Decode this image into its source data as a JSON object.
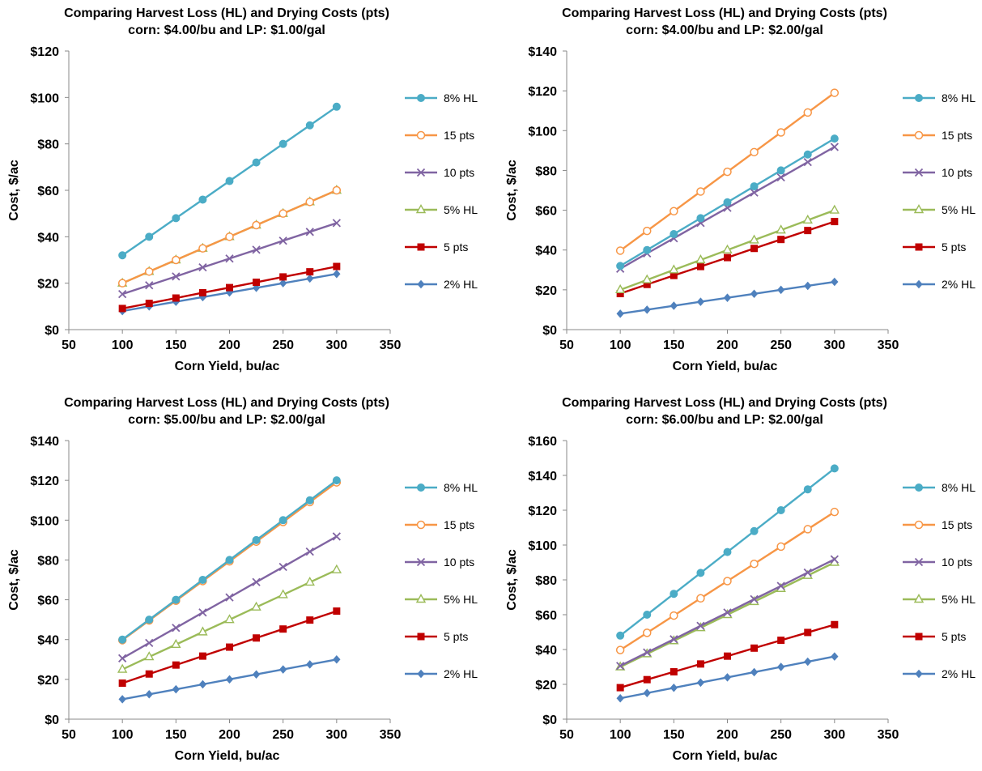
{
  "chart_data": [
    {
      "type": "line",
      "title": "Comparing Harvest Loss (HL) and Drying Costs (pts)",
      "subtitle": "corn: $4.00/bu and LP: $1.00/gal",
      "xlabel": "Corn Yield, bu/ac",
      "ylabel": "Cost, $/ac",
      "xlim": [
        50,
        350
      ],
      "ylim": [
        0,
        120
      ],
      "x_ticks": [
        50,
        100,
        150,
        200,
        250,
        300,
        350
      ],
      "y_ticks": [
        "$0",
        "$20",
        "$40",
        "$60",
        "$80",
        "$100",
        "$120"
      ],
      "legend_position": "right",
      "x": [
        100,
        125,
        150,
        175,
        200,
        225,
        250,
        275,
        300
      ],
      "series": [
        {
          "name": "8% HL",
          "color": "#4BACC6",
          "marker": "circle",
          "values": [
            32,
            40,
            48,
            56,
            64,
            72,
            80,
            88,
            96
          ]
        },
        {
          "name": "15 pts",
          "color": "#F79646",
          "marker": "circle-open",
          "values": [
            20,
            25,
            30,
            35,
            40,
            45,
            50,
            55,
            60
          ]
        },
        {
          "name": "10 pts",
          "color": "#8064A2",
          "marker": "x",
          "values": [
            15.3,
            19.1,
            22.9,
            26.8,
            30.6,
            34.4,
            38.3,
            42.1,
            45.9
          ]
        },
        {
          "name": "5% HL",
          "color": "#9BBB59",
          "marker": "triangle-open",
          "values": [
            20,
            25,
            30,
            35,
            40,
            45,
            50,
            55,
            60
          ]
        },
        {
          "name": "5 pts",
          "color": "#C00000",
          "marker": "square",
          "values": [
            9.1,
            11.3,
            13.6,
            15.9,
            18.1,
            20.4,
            22.7,
            24.9,
            27.2
          ]
        },
        {
          "name": "2% HL",
          "color": "#4F81BD",
          "marker": "diamond",
          "values": [
            8,
            10,
            12,
            14,
            16,
            18,
            20,
            22,
            24
          ]
        }
      ]
    },
    {
      "type": "line",
      "title": "Comparing Harvest Loss (HL) and Drying Costs (pts)",
      "subtitle": "corn: $4.00/bu and LP: $2.00/gal",
      "xlabel": "Corn Yield, bu/ac",
      "ylabel": "Cost, $/ac",
      "xlim": [
        50,
        350
      ],
      "ylim": [
        0,
        140
      ],
      "x_ticks": [
        50,
        100,
        150,
        200,
        250,
        300,
        350
      ],
      "y_ticks": [
        "$0",
        "$20",
        "$40",
        "$60",
        "$80",
        "$100",
        "$120",
        "$140"
      ],
      "legend_position": "right",
      "x": [
        100,
        125,
        150,
        175,
        200,
        225,
        250,
        275,
        300
      ],
      "series": [
        {
          "name": "8% HL",
          "color": "#4BACC6",
          "marker": "circle",
          "values": [
            32,
            40,
            48,
            56,
            64,
            72,
            80,
            88,
            96
          ]
        },
        {
          "name": "15 pts",
          "color": "#F79646",
          "marker": "circle-open",
          "values": [
            39.7,
            49.6,
            59.5,
            69.4,
            79.3,
            89.2,
            99.1,
            109.1,
            119
          ]
        },
        {
          "name": "10 pts",
          "color": "#8064A2",
          "marker": "x",
          "values": [
            30.6,
            38.3,
            45.9,
            53.6,
            61.2,
            68.9,
            76.5,
            84.2,
            91.8
          ]
        },
        {
          "name": "5% HL",
          "color": "#9BBB59",
          "marker": "triangle-open",
          "values": [
            20,
            25,
            30,
            35,
            40,
            45,
            50,
            55,
            60
          ]
        },
        {
          "name": "5 pts",
          "color": "#C00000",
          "marker": "square",
          "values": [
            18.1,
            22.7,
            27.2,
            31.7,
            36.2,
            40.8,
            45.3,
            49.8,
            54.3
          ]
        },
        {
          "name": "2% HL",
          "color": "#4F81BD",
          "marker": "diamond",
          "values": [
            8,
            10,
            12,
            14,
            16,
            18,
            20,
            22,
            24
          ]
        }
      ]
    },
    {
      "type": "line",
      "title": "Comparing Harvest Loss (HL) and Drying Costs (pts)",
      "subtitle": "corn: $5.00/bu and LP: $2.00/gal",
      "xlabel": "Corn Yield, bu/ac",
      "ylabel": "Cost, $/ac",
      "xlim": [
        50,
        350
      ],
      "ylim": [
        0,
        140
      ],
      "x_ticks": [
        50,
        100,
        150,
        200,
        250,
        300,
        350
      ],
      "y_ticks": [
        "$0",
        "$20",
        "$40",
        "$60",
        "$80",
        "$100",
        "$120",
        "$140"
      ],
      "legend_position": "right",
      "x": [
        100,
        125,
        150,
        175,
        200,
        225,
        250,
        275,
        300
      ],
      "series": [
        {
          "name": "8% HL",
          "color": "#4BACC6",
          "marker": "circle",
          "values": [
            40,
            50,
            60,
            70,
            80,
            90,
            100,
            110,
            120
          ]
        },
        {
          "name": "15 pts",
          "color": "#F79646",
          "marker": "circle-open",
          "values": [
            39.7,
            49.6,
            59.5,
            69.4,
            79.3,
            89.2,
            99.1,
            109.1,
            119
          ]
        },
        {
          "name": "10 pts",
          "color": "#8064A2",
          "marker": "x",
          "values": [
            30.6,
            38.3,
            45.9,
            53.6,
            61.2,
            68.9,
            76.5,
            84.2,
            91.8
          ]
        },
        {
          "name": "5% HL",
          "color": "#9BBB59",
          "marker": "triangle-open",
          "values": [
            25,
            31.3,
            37.5,
            43.8,
            50,
            56.3,
            62.5,
            68.8,
            75
          ]
        },
        {
          "name": "5 pts",
          "color": "#C00000",
          "marker": "square",
          "values": [
            18.1,
            22.7,
            27.2,
            31.7,
            36.2,
            40.8,
            45.3,
            49.8,
            54.3
          ]
        },
        {
          "name": "2% HL",
          "color": "#4F81BD",
          "marker": "diamond",
          "values": [
            10,
            12.5,
            15,
            17.5,
            20,
            22.5,
            25,
            27.5,
            30
          ]
        }
      ]
    },
    {
      "type": "line",
      "title": "Comparing Harvest Loss (HL) and Drying Costs (pts)",
      "subtitle": "corn: $6.00/bu and LP: $2.00/gal",
      "xlabel": "Corn Yield, bu/ac",
      "ylabel": "Cost, $/ac",
      "xlim": [
        50,
        350
      ],
      "ylim": [
        0,
        160
      ],
      "x_ticks": [
        50,
        100,
        150,
        200,
        250,
        300,
        350
      ],
      "y_ticks": [
        "$0",
        "$20",
        "$40",
        "$60",
        "$80",
        "$100",
        "$120",
        "$140",
        "$160"
      ],
      "legend_position": "right",
      "x": [
        100,
        125,
        150,
        175,
        200,
        225,
        250,
        275,
        300
      ],
      "series": [
        {
          "name": "8% HL",
          "color": "#4BACC6",
          "marker": "circle",
          "values": [
            48,
            60,
            72,
            84,
            96,
            108,
            120,
            132,
            144
          ]
        },
        {
          "name": "15 pts",
          "color": "#F79646",
          "marker": "circle-open",
          "values": [
            39.7,
            49.6,
            59.5,
            69.4,
            79.3,
            89.2,
            99.1,
            109.1,
            119
          ]
        },
        {
          "name": "10 pts",
          "color": "#8064A2",
          "marker": "x",
          "values": [
            30.6,
            38.3,
            45.9,
            53.6,
            61.2,
            68.9,
            76.5,
            84.2,
            91.8
          ]
        },
        {
          "name": "5% HL",
          "color": "#9BBB59",
          "marker": "triangle-open",
          "values": [
            30,
            37.5,
            45,
            52.5,
            60,
            67.5,
            75,
            82.5,
            90
          ]
        },
        {
          "name": "5 pts",
          "color": "#C00000",
          "marker": "square",
          "values": [
            18.1,
            22.7,
            27.2,
            31.7,
            36.2,
            40.8,
            45.3,
            49.8,
            54.3
          ]
        },
        {
          "name": "2% HL",
          "color": "#4F81BD",
          "marker": "diamond",
          "values": [
            12,
            15,
            18,
            21,
            24,
            27,
            30,
            33,
            36
          ]
        }
      ]
    }
  ]
}
